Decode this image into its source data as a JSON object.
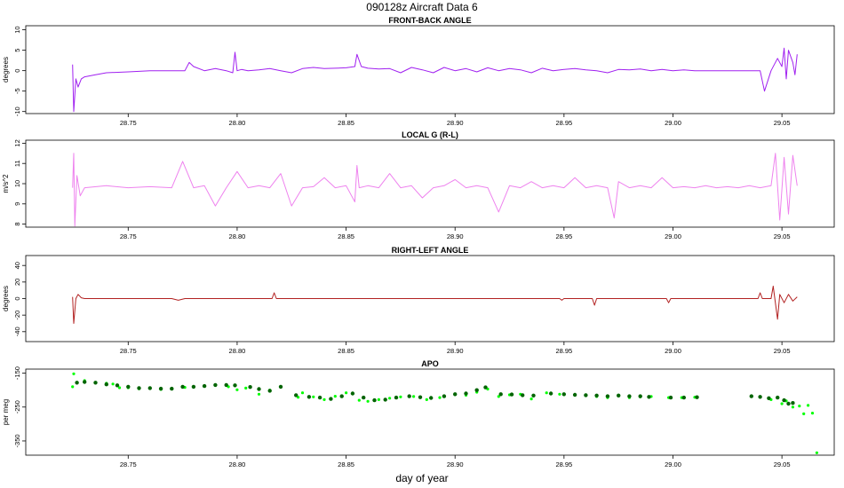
{
  "figure": {
    "title": "090128z   Aircraft Data 6",
    "xlabel": "day of year"
  },
  "chart_data": [
    {
      "type": "line",
      "title": "FRONT-BACK ANGLE",
      "ylabel": "degrees",
      "xlim": [
        28.703,
        29.074
      ],
      "ylim": [
        -10.5,
        11
      ],
      "yticks": [
        -10,
        -5,
        0,
        5,
        10
      ],
      "xticks": [
        28.75,
        28.8,
        28.85,
        28.9,
        28.95,
        29.0,
        29.05
      ],
      "xticklabels": [
        "28.75",
        "28.80",
        "28.85",
        "28.90",
        "28.95",
        "29.00",
        "29.05"
      ],
      "color": "#a020f0",
      "series": [
        {
          "x": [
            28.7245,
            28.725,
            28.7255,
            28.726,
            28.727,
            28.7285,
            28.73,
            28.735,
            28.74,
            28.75,
            28.76,
            28.77,
            28.776,
            28.778,
            28.78,
            28.785,
            28.79,
            28.795,
            28.798,
            28.799,
            28.8,
            28.802,
            28.805,
            28.81,
            28.815,
            28.82,
            28.825,
            28.83,
            28.835,
            28.84,
            28.845,
            28.85,
            28.854,
            28.855,
            28.857,
            28.86,
            28.865,
            28.87,
            28.875,
            28.88,
            28.885,
            28.89,
            28.895,
            28.9,
            28.905,
            28.91,
            28.915,
            28.92,
            28.925,
            28.93,
            28.935,
            28.94,
            28.945,
            28.95,
            28.955,
            28.96,
            28.965,
            28.97,
            28.975,
            28.98,
            28.985,
            28.99,
            28.995,
            29.0,
            29.005,
            29.01,
            29.015,
            29.02,
            29.025,
            29.03,
            29.035,
            29.04,
            29.042,
            29.045,
            29.048,
            29.05,
            29.051,
            29.052,
            29.053,
            29.055,
            29.056,
            29.057
          ],
          "y": [
            1.5,
            -10,
            -6,
            -2,
            -4,
            -2,
            -1.5,
            -1,
            -0.5,
            -0.3,
            0,
            0,
            0,
            2,
            1,
            0,
            0.5,
            0,
            -0.5,
            4.5,
            0,
            0.3,
            0,
            0.2,
            0.5,
            0,
            -0.5,
            0.5,
            0.8,
            0.5,
            0.6,
            0.7,
            1,
            4,
            1,
            0.6,
            0.4,
            0.5,
            -0.5,
            0.8,
            0.2,
            -0.5,
            0.8,
            0,
            0.5,
            -0.3,
            0.7,
            0,
            0.5,
            0.2,
            -0.5,
            0.6,
            0,
            0.3,
            0.5,
            0.2,
            0,
            -0.5,
            0.3,
            0.2,
            0.4,
            0,
            0.3,
            0,
            0.2,
            0,
            0,
            0,
            0,
            0,
            0,
            0,
            -5,
            0,
            3,
            1,
            5.5,
            -2,
            5,
            2,
            -1,
            4
          ]
        }
      ]
    },
    {
      "type": "line",
      "title": "LOCAL G (R-L)",
      "ylabel": "m/s^2",
      "xlim": [
        28.703,
        29.074
      ],
      "ylim": [
        7.85,
        12.15
      ],
      "yticks": [
        8,
        9,
        10,
        11,
        12
      ],
      "xticks": [
        28.75,
        28.8,
        28.85,
        28.9,
        28.95,
        29.0,
        29.05
      ],
      "xticklabels": [
        "28.75",
        "28.80",
        "28.85",
        "28.90",
        "28.95",
        "29.00",
        "29.05"
      ],
      "color": "#ee82ee",
      "series": [
        {
          "x": [
            28.7245,
            28.725,
            28.7255,
            28.7265,
            28.728,
            28.73,
            28.74,
            28.75,
            28.76,
            28.77,
            28.775,
            28.78,
            28.785,
            28.79,
            28.795,
            28.8,
            28.805,
            28.81,
            28.815,
            28.82,
            28.825,
            28.83,
            28.835,
            28.84,
            28.845,
            28.85,
            28.854,
            28.855,
            28.856,
            28.86,
            28.865,
            28.87,
            28.875,
            28.88,
            28.885,
            28.89,
            28.895,
            28.9,
            28.905,
            28.91,
            28.915,
            28.92,
            28.925,
            28.93,
            28.935,
            28.94,
            28.945,
            28.95,
            28.955,
            28.96,
            28.965,
            28.97,
            28.973,
            28.975,
            28.98,
            28.985,
            28.99,
            28.995,
            29.0,
            29.005,
            29.01,
            29.015,
            29.02,
            29.025,
            29.03,
            29.035,
            29.04,
            29.045,
            29.047,
            29.049,
            29.051,
            29.053,
            29.055,
            29.057
          ],
          "y": [
            9.8,
            11.5,
            7.9,
            10.4,
            9.4,
            9.8,
            9.9,
            9.8,
            9.85,
            9.8,
            11.1,
            9.8,
            9.9,
            8.9,
            9.8,
            10.6,
            9.8,
            9.9,
            9.8,
            10.5,
            8.9,
            9.8,
            9.85,
            10.3,
            9.8,
            9.9,
            9.1,
            10.9,
            9.8,
            9.9,
            9.8,
            10.5,
            9.8,
            9.9,
            9.3,
            9.8,
            9.9,
            10.2,
            9.8,
            9.9,
            9.8,
            8.6,
            9.9,
            9.8,
            10.1,
            9.8,
            9.9,
            9.8,
            10.3,
            9.8,
            9.9,
            9.8,
            8.3,
            10.1,
            9.8,
            9.9,
            9.8,
            10.3,
            9.8,
            9.85,
            9.8,
            9.9,
            9.8,
            9.85,
            9.8,
            9.9,
            9.8,
            9.9,
            11.5,
            8.2,
            11.3,
            8.5,
            11.4,
            9.9
          ]
        }
      ]
    },
    {
      "type": "line",
      "title": "RIGHT-LEFT ANGLE",
      "ylabel": "degrees",
      "xlim": [
        28.703,
        29.074
      ],
      "ylim": [
        -52,
        52
      ],
      "yticks": [
        -40,
        -20,
        0,
        20,
        40
      ],
      "xticks": [
        28.75,
        28.8,
        28.85,
        28.9,
        28.95,
        29.0,
        29.05
      ],
      "xticklabels": [
        "28.75",
        "28.80",
        "28.85",
        "28.90",
        "28.95",
        "29.00",
        "29.05"
      ],
      "color": "#b22222",
      "series": [
        {
          "x": [
            28.7245,
            28.725,
            28.726,
            28.727,
            28.7285,
            28.73,
            28.74,
            28.75,
            28.77,
            28.773,
            28.776,
            28.8,
            28.816,
            28.817,
            28.818,
            28.85,
            28.86,
            28.9,
            28.948,
            28.949,
            28.95,
            28.963,
            28.964,
            28.965,
            28.99,
            28.997,
            28.998,
            28.999,
            29.03,
            29.039,
            29.04,
            29.041,
            29.045,
            29.046,
            29.048,
            29.049,
            29.051,
            29.053,
            29.055,
            29.057
          ],
          "y": [
            2,
            -30,
            0,
            5,
            1,
            0,
            0,
            0,
            0,
            -2,
            0,
            0,
            0,
            7,
            0,
            0,
            0,
            0,
            0,
            -2,
            0,
            0,
            -8,
            0,
            0,
            0,
            -5,
            0,
            0,
            0,
            7,
            0,
            0,
            15,
            -25,
            5,
            -5,
            5,
            -3,
            2
          ]
        }
      ]
    },
    {
      "type": "scatter",
      "title": "APO",
      "ylabel": "per meg",
      "xlim": [
        28.703,
        29.074
      ],
      "ylim": [
        -392,
        -138
      ],
      "yticks": [
        -150,
        -250,
        -350
      ],
      "xticks": [
        28.75,
        28.8,
        28.85,
        28.9,
        28.95,
        29.0,
        29.05
      ],
      "xticklabels": [
        "28.75",
        "28.80",
        "28.85",
        "28.90",
        "28.95",
        "29.00",
        "29.05"
      ],
      "colors": [
        "#00ff00",
        "#006400"
      ],
      "series": [
        {
          "x": [
            28.7245,
            28.725,
            28.73,
            28.735,
            28.74,
            28.743,
            28.746,
            28.75,
            28.755,
            28.76,
            28.765,
            28.77,
            28.776,
            28.78,
            28.785,
            28.79,
            28.796,
            28.8,
            28.804,
            28.81,
            28.815,
            28.82,
            28.828,
            28.83,
            28.835,
            28.84,
            28.845,
            28.85,
            28.856,
            28.86,
            28.865,
            28.87,
            28.875,
            28.881,
            28.887,
            28.893,
            28.9,
            28.905,
            28.91,
            28.915,
            28.92,
            28.925,
            28.93,
            28.935,
            28.942,
            28.948,
            28.955,
            28.96,
            28.965,
            28.97,
            28.975,
            28.98,
            28.985,
            28.99,
            28.998,
            29.004,
            29.01,
            29.036,
            29.04,
            29.045,
            29.048,
            29.05,
            29.052,
            29.055,
            29.058,
            29.06,
            29.062,
            29.064,
            29.066
          ],
          "y": [
            -190,
            -152,
            -172,
            -178,
            -180,
            -182,
            -193,
            -193,
            -196,
            -195,
            -198,
            -196,
            -192,
            -190,
            -188,
            -186,
            -190,
            -199,
            -194,
            -212,
            -200,
            -190,
            -221,
            -208,
            -220,
            -228,
            -218,
            -208,
            -230,
            -233,
            -228,
            -224,
            -220,
            -219,
            -228,
            -222,
            -213,
            -215,
            -206,
            -197,
            -219,
            -214,
            -212,
            -226,
            -208,
            -212,
            -215,
            -214,
            -219,
            -222,
            -215,
            -222,
            -220,
            -219,
            -222,
            -222,
            -221,
            -218,
            -220,
            -228,
            -222,
            -240,
            -232,
            -250,
            -247,
            -270,
            -245,
            -268,
            -385
          ]
        },
        {
          "x": [
            28.7265,
            28.73,
            28.735,
            28.74,
            28.745,
            28.75,
            28.755,
            28.76,
            28.765,
            28.77,
            28.775,
            28.78,
            28.785,
            28.79,
            28.795,
            28.799,
            28.806,
            28.81,
            28.815,
            28.82,
            28.827,
            28.833,
            28.838,
            28.843,
            28.848,
            28.853,
            28.858,
            28.863,
            28.868,
            28.873,
            28.879,
            28.884,
            28.889,
            28.895,
            28.9,
            28.905,
            28.91,
            28.914,
            28.921,
            28.926,
            28.931,
            28.936,
            28.944,
            28.95,
            28.955,
            28.96,
            28.965,
            28.97,
            28.975,
            28.98,
            28.985,
            28.989,
            28.999,
            29.005,
            29.011,
            29.036,
            29.04,
            29.044,
            29.048,
            29.051,
            29.053,
            29.055
          ],
          "y": [
            -178,
            -176,
            -178,
            -183,
            -186,
            -190,
            -194,
            -194,
            -196,
            -196,
            -190,
            -190,
            -188,
            -185,
            -185,
            -186,
            -191,
            -197,
            -202,
            -190,
            -215,
            -220,
            -222,
            -226,
            -218,
            -210,
            -222,
            -230,
            -228,
            -222,
            -218,
            -221,
            -223,
            -218,
            -212,
            -210,
            -200,
            -192,
            -212,
            -213,
            -215,
            -216,
            -210,
            -212,
            -214,
            -215,
            -216,
            -218,
            -216,
            -218,
            -218,
            -220,
            -222,
            -222,
            -221,
            -218,
            -220,
            -224,
            -222,
            -230,
            -240,
            -238
          ]
        }
      ]
    }
  ]
}
